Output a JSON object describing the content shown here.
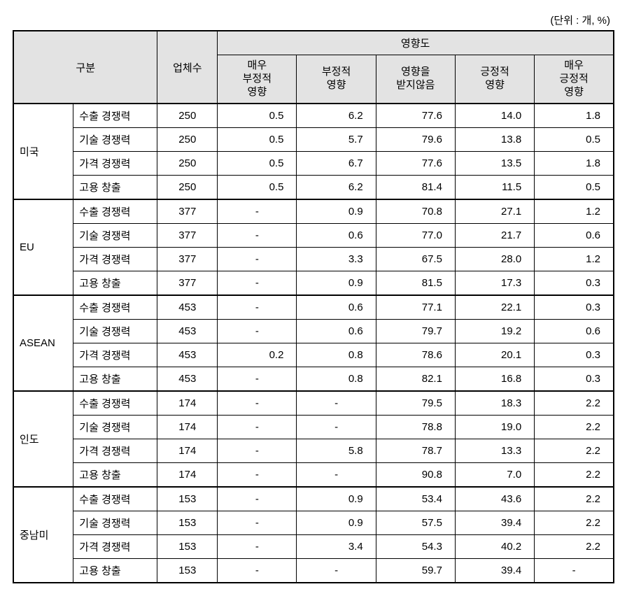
{
  "unit_label": "(단위 : 개, %)",
  "headers": {
    "category": "구분",
    "count": "업체수",
    "impact": "영향도",
    "col_very_neg": "매우\n부정적\n영향",
    "col_neg": "부정적\n영향",
    "col_none": "영향을\n받지않음",
    "col_pos": "긍정적\n영향",
    "col_very_pos": "매우\n긍정적\n영향"
  },
  "regions": [
    {
      "name": "미국",
      "rows": [
        {
          "metric": "수출 경쟁력",
          "count": "250",
          "v1": "0.5",
          "v2": "6.2",
          "v3": "77.6",
          "v4": "14.0",
          "v5": "1.8"
        },
        {
          "metric": "기술 경쟁력",
          "count": "250",
          "v1": "0.5",
          "v2": "5.7",
          "v3": "79.6",
          "v4": "13.8",
          "v5": "0.5"
        },
        {
          "metric": "가격 경쟁력",
          "count": "250",
          "v1": "0.5",
          "v2": "6.7",
          "v3": "77.6",
          "v4": "13.5",
          "v5": "1.8"
        },
        {
          "metric": "고용 창출",
          "count": "250",
          "v1": "0.5",
          "v2": "6.2",
          "v3": "81.4",
          "v4": "11.5",
          "v5": "0.5"
        }
      ]
    },
    {
      "name": "EU",
      "rows": [
        {
          "metric": "수출 경쟁력",
          "count": "377",
          "v1": "-",
          "v2": "0.9",
          "v3": "70.8",
          "v4": "27.1",
          "v5": "1.2"
        },
        {
          "metric": "기술 경쟁력",
          "count": "377",
          "v1": "-",
          "v2": "0.6",
          "v3": "77.0",
          "v4": "21.7",
          "v5": "0.6"
        },
        {
          "metric": "가격 경쟁력",
          "count": "377",
          "v1": "-",
          "v2": "3.3",
          "v3": "67.5",
          "v4": "28.0",
          "v5": "1.2"
        },
        {
          "metric": "고용 창출",
          "count": "377",
          "v1": "-",
          "v2": "0.9",
          "v3": "81.5",
          "v4": "17.3",
          "v5": "0.3"
        }
      ]
    },
    {
      "name": "ASEAN",
      "rows": [
        {
          "metric": "수출 경쟁력",
          "count": "453",
          "v1": "-",
          "v2": "0.6",
          "v3": "77.1",
          "v4": "22.1",
          "v5": "0.3"
        },
        {
          "metric": "기술 경쟁력",
          "count": "453",
          "v1": "-",
          "v2": "0.6",
          "v3": "79.7",
          "v4": "19.2",
          "v5": "0.6"
        },
        {
          "metric": "가격 경쟁력",
          "count": "453",
          "v1": "0.2",
          "v2": "0.8",
          "v3": "78.6",
          "v4": "20.1",
          "v5": "0.3"
        },
        {
          "metric": "고용 창출",
          "count": "453",
          "v1": "-",
          "v2": "0.8",
          "v3": "82.1",
          "v4": "16.8",
          "v5": "0.3"
        }
      ]
    },
    {
      "name": "인도",
      "rows": [
        {
          "metric": "수출 경쟁력",
          "count": "174",
          "v1": "-",
          "v2": "-",
          "v3": "79.5",
          "v4": "18.3",
          "v5": "2.2"
        },
        {
          "metric": "기술 경쟁력",
          "count": "174",
          "v1": "-",
          "v2": "-",
          "v3": "78.8",
          "v4": "19.0",
          "v5": "2.2"
        },
        {
          "metric": "가격 경쟁력",
          "count": "174",
          "v1": "-",
          "v2": "5.8",
          "v3": "78.7",
          "v4": "13.3",
          "v5": "2.2"
        },
        {
          "metric": "고용 창출",
          "count": "174",
          "v1": "-",
          "v2": "-",
          "v3": "90.8",
          "v4": "7.0",
          "v5": "2.2"
        }
      ]
    },
    {
      "name": "중남미",
      "rows": [
        {
          "metric": "수출 경쟁력",
          "count": "153",
          "v1": "-",
          "v2": "0.9",
          "v3": "53.4",
          "v4": "43.6",
          "v5": "2.2"
        },
        {
          "metric": "기술 경쟁력",
          "count": "153",
          "v1": "-",
          "v2": "0.9",
          "v3": "57.5",
          "v4": "39.4",
          "v5": "2.2"
        },
        {
          "metric": "가격 경쟁력",
          "count": "153",
          "v1": "-",
          "v2": "3.4",
          "v3": "54.3",
          "v4": "40.2",
          "v5": "2.2"
        },
        {
          "metric": "고용 창출",
          "count": "153",
          "v1": "-",
          "v2": "-",
          "v3": "59.7",
          "v4": "39.4",
          "v5": "-"
        }
      ]
    }
  ]
}
